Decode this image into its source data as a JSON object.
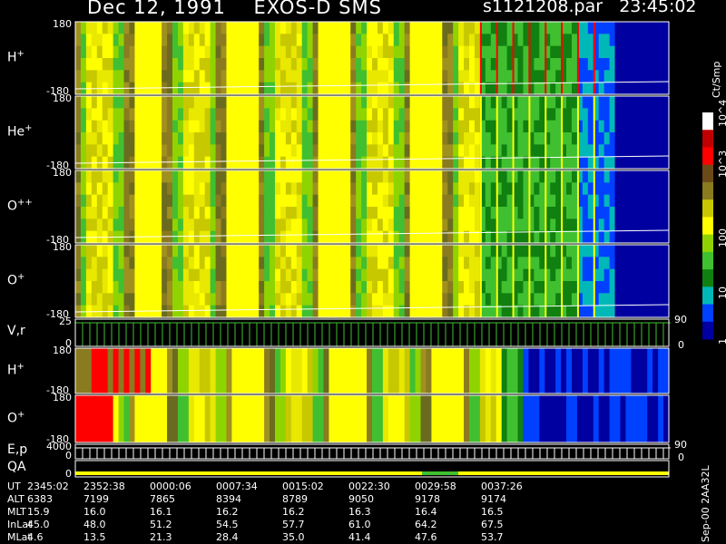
{
  "header": {
    "title": "Dec 12, 1991    EXOS-D SMS",
    "file": "s1121208.par   23:45:02"
  },
  "panels": [
    {
      "label": "H+",
      "ion": "H",
      "charge": "+",
      "ymax": "180",
      "ymin": "-180"
    },
    {
      "label": "He+",
      "ion": "He",
      "charge": "+",
      "ymax": "180",
      "ymin": "-180"
    },
    {
      "label": "O++",
      "ion": "O",
      "charge": "++",
      "ymax": "180",
      "ymin": "-180"
    },
    {
      "label": "O+",
      "ion": "O",
      "charge": "+",
      "ymax": "180",
      "ymin": "-180"
    },
    {
      "label": "V,r",
      "ion": "V,r",
      "charge": "",
      "ymax": "25",
      "ymin": "0",
      "right_top": "90",
      "right_bottom": "0"
    },
    {
      "label": "H+",
      "ion": "H",
      "charge": "+",
      "ymax": "180",
      "ymin": "-180"
    },
    {
      "label": "O+",
      "ion": "O",
      "charge": "+",
      "ymax": "180",
      "ymin": "-180"
    },
    {
      "label": "E,p",
      "ion": "E,p",
      "charge": "",
      "ymax": "4000",
      "ymin": "0",
      "right_top": "90",
      "right_bottom": "0"
    },
    {
      "label": "QA",
      "ion": "QA",
      "charge": "",
      "ymax": "",
      "ymin": "0"
    }
  ],
  "colorbar": {
    "unit": "Ct/Smp",
    "ticks": [
      "10^4",
      "10^3",
      "100",
      "10",
      "1"
    ],
    "colors": [
      "#ffffff",
      "#c00000",
      "#ff0000",
      "#6b4a1a",
      "#8a7a20",
      "#c8c800",
      "#ffff00",
      "#8fd400",
      "#40c030",
      "#108010",
      "#00b8b8",
      "#0040ff",
      "#0000a0"
    ]
  },
  "chart_data": {
    "type": "heatmap",
    "title": "Dec 12, 1991    EXOS-D SMS",
    "xlabel": "UT",
    "x_ticks": [
      "2345:02",
      "2352:38",
      "0000:06",
      "0007:34",
      "0015:02",
      "0022:30",
      "0029:58",
      "0037:26"
    ],
    "ylim_pitch": [
      -180,
      180
    ],
    "ylim_velocity": [
      0,
      25
    ],
    "ylim_energy": [
      0,
      4000
    ],
    "color_scale": "log",
    "color_range": [
      1,
      10000
    ],
    "series": [
      {
        "name": "H+"
      },
      {
        "name": "He+"
      },
      {
        "name": "O++"
      },
      {
        "name": "O+"
      },
      {
        "name": "V,r"
      },
      {
        "name": "H+"
      },
      {
        "name": "O+"
      },
      {
        "name": "E,p"
      },
      {
        "name": "QA"
      }
    ]
  },
  "ephemeris": {
    "labels": [
      "UT",
      "ALT",
      "MLT",
      "InLat",
      "MLat"
    ],
    "rows": [
      [
        "2345:02",
        "2352:38",
        "0000:06",
        "0007:34",
        "0015:02",
        "0022:30",
        "0029:58",
        "0037:26"
      ],
      [
        "6383",
        "7199",
        "7865",
        "8394",
        "8789",
        "9050",
        "9178",
        "9174"
      ],
      [
        "15.9",
        "16.0",
        "16.1",
        "16.2",
        "16.2",
        "16.3",
        "16.4",
        "16.5"
      ],
      [
        "45.0",
        "48.0",
        "51.2",
        "54.5",
        "57.7",
        "61.0",
        "64.2",
        "67.5"
      ],
      [
        "4.6",
        "13.5",
        "21.3",
        "28.4",
        "35.0",
        "41.4",
        "47.6",
        "53.7"
      ]
    ]
  },
  "footer": {
    "stamp": "Sep-00  2AA32L"
  }
}
